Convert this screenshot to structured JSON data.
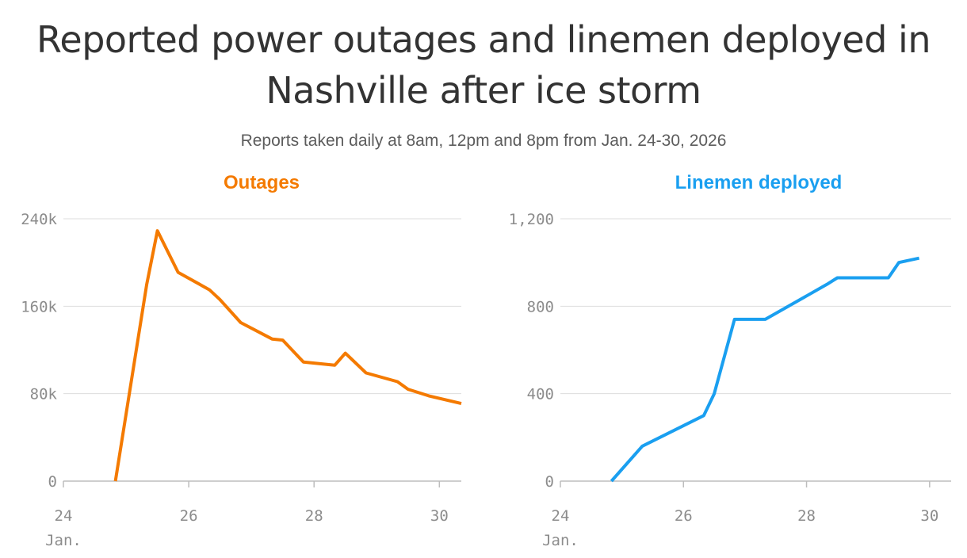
{
  "title": "Reported power outages and linemen deployed in Nashville after ice storm",
  "subtitle": "Reports taken daily at 8am, 12pm and 8pm from Jan. 24-30, 2026",
  "chart_data": [
    {
      "type": "line",
      "title": "Outages",
      "color": "#f47a00",
      "x_unit": "day of January 2026",
      "xlim": [
        24,
        30.35
      ],
      "ylim": [
        0,
        240000
      ],
      "x_ticks": [
        "24",
        "26",
        "28",
        "30"
      ],
      "x_tick_values": [
        24,
        26,
        28,
        30
      ],
      "x_tick_sub": "Jan.",
      "y_ticks": [
        "0",
        "80k",
        "160k",
        "240k"
      ],
      "y_tick_values": [
        0,
        80000,
        160000,
        240000
      ],
      "grid": true,
      "x": [
        24.83,
        25.33,
        25.5,
        25.83,
        26.33,
        26.5,
        26.83,
        27.33,
        27.5,
        27.83,
        28.33,
        28.5,
        28.83,
        29.33,
        29.5,
        29.83,
        30.35
      ],
      "y": [
        0,
        180000,
        229000,
        191000,
        175000,
        166000,
        145000,
        130000,
        129000,
        109000,
        106000,
        117000,
        99000,
        91000,
        84000,
        78000,
        71000
      ]
    },
    {
      "type": "line",
      "title": "Linemen deployed",
      "color": "#1a9ff0",
      "x_unit": "day of January 2026",
      "xlim": [
        24,
        30.35
      ],
      "ylim": [
        0,
        1200
      ],
      "x_ticks": [
        "24",
        "26",
        "28",
        "30"
      ],
      "x_tick_values": [
        24,
        26,
        28,
        30
      ],
      "x_tick_sub": "Jan.",
      "y_ticks": [
        "0",
        "400",
        "800",
        "1,200"
      ],
      "y_tick_values": [
        0,
        400,
        800,
        1200
      ],
      "grid": true,
      "x": [
        24.83,
        25.33,
        26.33,
        26.5,
        26.83,
        27.33,
        28.33,
        28.5,
        29.33,
        29.5,
        29.83
      ],
      "y": [
        0,
        160,
        300,
        400,
        740,
        740,
        900,
        930,
        930,
        1000,
        1020
      ]
    }
  ]
}
